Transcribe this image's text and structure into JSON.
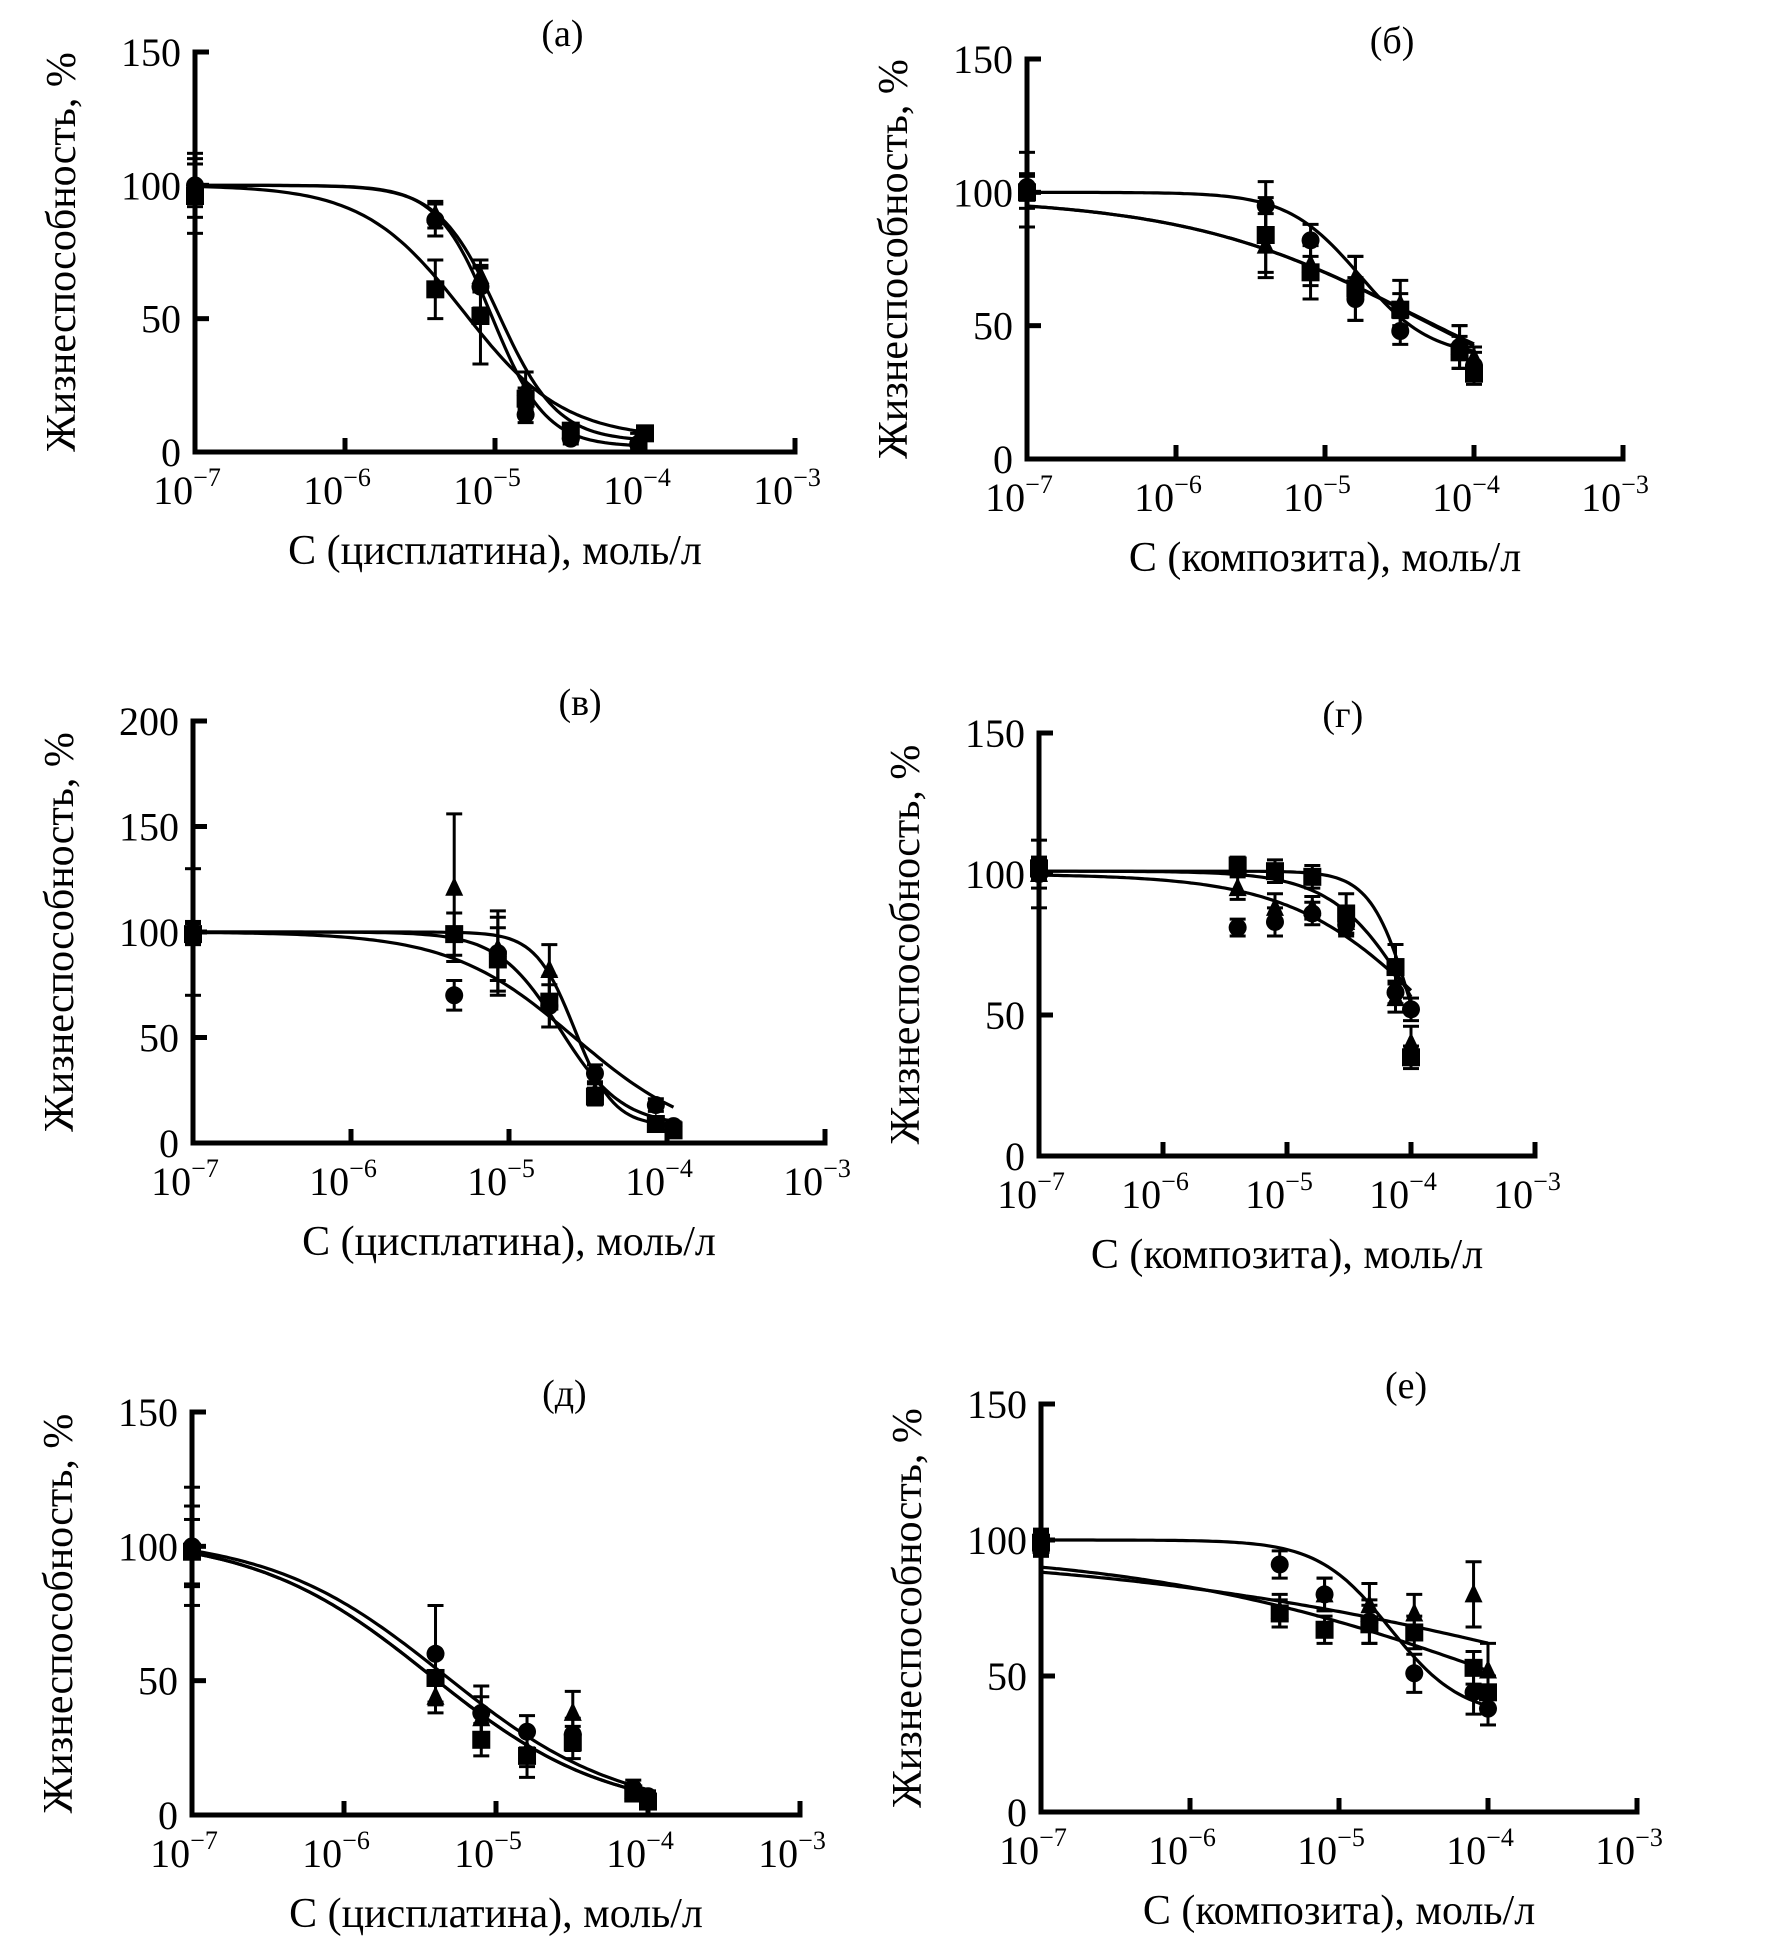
{
  "figure": {
    "panels_count": 6,
    "y_axis_label": "Жизнеспособность, %",
    "x_tick_labels": [
      {
        "base": "10",
        "exp": "−7"
      },
      {
        "base": "10",
        "exp": "−6"
      },
      {
        "base": "10",
        "exp": "−5"
      },
      {
        "base": "10",
        "exp": "−4"
      },
      {
        "base": "10",
        "exp": "−3"
      }
    ]
  },
  "chart_data": [
    {
      "id": "a",
      "type": "scatter",
      "title": "(а)",
      "xlabel": "C (цисплатина), моль/л",
      "ylabel": "Жизнеспособность, %",
      "xscale": "log",
      "xlim": [
        1e-07,
        0.001
      ],
      "ylim": [
        0,
        150
      ],
      "yticks": [
        0,
        50,
        100,
        150
      ],
      "series": [
        {
          "name": "circle",
          "marker": "circle",
          "points": [
            [
              1e-07,
              100,
              8
            ],
            [
              4e-06,
              87,
              6
            ],
            [
              8e-06,
              62,
              8
            ],
            [
              1.6e-05,
              14,
              3
            ],
            [
              3.2e-05,
              5,
              2
            ],
            [
              9e-05,
              3,
              2
            ]
          ],
          "fit": {
            "top": 100,
            "bottom": 2,
            "ic50": 9.5e-06,
            "hill": 2.4
          }
        },
        {
          "name": "triangle",
          "marker": "triangle",
          "points": [
            [
              1e-07,
              100,
              12
            ],
            [
              4e-06,
              89,
              5
            ],
            [
              8e-06,
              66,
              6
            ],
            [
              1.6e-05,
              24,
              6
            ],
            [
              3.2e-05,
              8,
              2
            ],
            [
              9e-05,
              5,
              2
            ]
          ],
          "fit": {
            "top": 100,
            "bottom": 4,
            "ic50": 1.05e-05,
            "hill": 2.2
          }
        },
        {
          "name": "square",
          "marker": "square",
          "points": [
            [
              1e-07,
              96,
              14
            ],
            [
              4e-06,
              61,
              11
            ],
            [
              8e-06,
              51,
              18
            ],
            [
              1.6e-05,
              20,
              4
            ],
            [
              3.2e-05,
              8,
              2
            ],
            [
              0.0001,
              7,
              2
            ]
          ],
          "fit": {
            "top": 100,
            "bottom": 5,
            "ic50": 6.2e-06,
            "hill": 1.3
          }
        }
      ]
    },
    {
      "id": "b",
      "type": "scatter",
      "title": "(б)",
      "xlabel": "C (композита), моль/л",
      "ylabel": "Жизнеспособность, %",
      "xscale": "log",
      "xlim": [
        1e-07,
        0.001
      ],
      "ylim": [
        0,
        150
      ],
      "yticks": [
        0,
        50,
        100,
        150
      ],
      "series": [
        {
          "name": "circle",
          "marker": "circle",
          "points": [
            [
              1e-07,
              102,
              5
            ],
            [
              4e-06,
              95,
              9
            ],
            [
              8e-06,
              82,
              6
            ],
            [
              1.6e-05,
              60,
              8
            ],
            [
              3.2e-05,
              48,
              5
            ],
            [
              8e-05,
              42,
              8
            ],
            [
              0.0001,
              35,
              5
            ]
          ],
          "fit": {
            "top": 100,
            "bottom": 38,
            "ic50": 1.7e-05,
            "hill": 1.8
          }
        },
        {
          "name": "triangle",
          "marker": "triangle",
          "points": [
            [
              1e-07,
              101,
              14
            ],
            [
              4e-06,
              80,
              12
            ],
            [
              8e-06,
              73,
              8
            ],
            [
              1.6e-05,
              68,
              8
            ],
            [
              3.2e-05,
              58,
              9
            ],
            [
              8e-05,
              42,
              8
            ],
            [
              0.0001,
              38,
              4
            ]
          ],
          "fit": {
            "top": 98,
            "bottom": 10,
            "ic50": 4e-05,
            "hill": 0.55
          }
        },
        {
          "name": "square",
          "marker": "square",
          "points": [
            [
              1e-07,
              100,
              6
            ],
            [
              4e-06,
              84,
              14
            ],
            [
              8e-06,
              70,
              10
            ],
            [
              1.6e-05,
              64,
              12
            ],
            [
              3.2e-05,
              56,
              6
            ],
            [
              8e-05,
              40,
              6
            ],
            [
              0.0001,
              32,
              4
            ]
          ],
          "fit": {
            "top": 98,
            "bottom": 8,
            "ic50": 4.2e-05,
            "hill": 0.55
          }
        }
      ]
    },
    {
      "id": "v",
      "type": "scatter",
      "title": "(в)",
      "xlabel": "C (цисплатина), моль/л",
      "ylabel": "Жизнеспособность, %",
      "xscale": "log",
      "xlim": [
        1e-07,
        0.001
      ],
      "ylim": [
        0,
        200
      ],
      "yticks": [
        0,
        50,
        100,
        150,
        200
      ],
      "series": [
        {
          "name": "circle",
          "marker": "circle",
          "points": [
            [
              1e-07,
              100,
              30
            ],
            [
              4.5e-06,
              70,
              7
            ],
            [
              8.5e-06,
              90,
              20
            ],
            [
              1.8e-05,
              65,
              10
            ],
            [
              3.5e-05,
              33,
              4
            ],
            [
              8.5e-05,
              18,
              3
            ],
            [
              0.00011,
              8,
              2
            ]
          ],
          "fit": {
            "top": 100,
            "bottom": 0,
            "ic50": 2.6e-05,
            "hill": 1.1
          }
        },
        {
          "name": "triangle",
          "marker": "triangle",
          "points": [
            [
              1e-07,
              100,
              5
            ],
            [
              4.5e-06,
              121,
              35
            ],
            [
              8.5e-06,
              92,
              15
            ],
            [
              1.8e-05,
              82,
              12
            ],
            [
              3.5e-05,
              24,
              4
            ],
            [
              8.5e-05,
              9,
              2
            ],
            [
              0.00011,
              7,
              2
            ]
          ],
          "fit": {
            "top": 100,
            "bottom": 8,
            "ic50": 2.6e-05,
            "hill": 3.5
          }
        },
        {
          "name": "square",
          "marker": "square",
          "points": [
            [
              1e-07,
              99,
              5
            ],
            [
              4.5e-06,
              99,
              10
            ],
            [
              8.5e-06,
              87,
              15
            ],
            [
              1.8e-05,
              67,
              12
            ],
            [
              3.5e-05,
              22,
              4
            ],
            [
              8.5e-05,
              9,
              2
            ],
            [
              0.00011,
              6,
              2
            ]
          ],
          "fit": {
            "top": 100,
            "bottom": 8,
            "ic50": 2.1e-05,
            "hill": 2.2
          }
        }
      ]
    },
    {
      "id": "g",
      "type": "scatter",
      "title": "(г)",
      "xlabel": "C (композита), моль/л",
      "ylabel": "Жизнеспособность, %",
      "xscale": "log",
      "xlim": [
        1e-07,
        0.001
      ],
      "ylim": [
        0,
        150
      ],
      "yticks": [
        0,
        50,
        100,
        150
      ],
      "series": [
        {
          "name": "circle",
          "marker": "circle",
          "points": [
            [
              1e-07,
              100,
              5
            ],
            [
              4e-06,
              81,
              3
            ],
            [
              8e-06,
              83,
              5
            ],
            [
              1.6e-05,
              86,
              4
            ],
            [
              3e-05,
              82,
              3
            ],
            [
              7.5e-05,
              58,
              4
            ],
            [
              0.0001,
              52,
              4
            ]
          ],
          "fit": {
            "top": 100,
            "bottom": 0,
            "ic50": 0.00016,
            "hill": 0.75
          }
        },
        {
          "name": "triangle",
          "marker": "triangle",
          "points": [
            [
              1e-07,
              100,
              12
            ],
            [
              4e-06,
              95,
              4
            ],
            [
              8e-06,
              88,
              5
            ],
            [
              1.6e-05,
              88,
              4
            ],
            [
              3e-05,
              83,
              5
            ],
            [
              7.5e-05,
              56,
              5
            ],
            [
              0.0001,
              40,
              6
            ]
          ],
          "fit": {
            "top": 101,
            "bottom": 0,
            "ic50": 0.00012,
            "hill": 1.3
          }
        },
        {
          "name": "square",
          "marker": "square",
          "points": [
            [
              1e-07,
              102,
              4
            ],
            [
              4e-06,
              103,
              3
            ],
            [
              8e-06,
              101,
              4
            ],
            [
              1.6e-05,
              99,
              4
            ],
            [
              3e-05,
              86,
              7
            ],
            [
              7.5e-05,
              67,
              8
            ],
            [
              0.0001,
              35,
              4
            ]
          ],
          "fit": {
            "top": 101,
            "bottom": 0,
            "ic50": 0.000105,
            "hill": 2.6
          }
        }
      ]
    },
    {
      "id": "d",
      "type": "scatter",
      "title": "(д)",
      "xlabel": "C (цисплатина), моль/л",
      "ylabel": "Жизнеспособность, %",
      "xscale": "log",
      "xlim": [
        1e-07,
        0.001
      ],
      "ylim": [
        0,
        150
      ],
      "yticks": [
        0,
        50,
        100,
        150
      ],
      "series": [
        {
          "name": "circle",
          "marker": "circle",
          "points": [
            [
              1e-07,
              100,
              22
            ],
            [
              4e-06,
              60,
              18
            ],
            [
              8e-06,
              38,
              10
            ],
            [
              1.6e-05,
              31,
              6
            ],
            [
              3.2e-05,
              30,
              6
            ],
            [
              8e-05,
              10,
              3
            ],
            [
              0.0001,
              7,
              2
            ]
          ],
          "fit": {
            "top": 104,
            "bottom": 0,
            "ic50": 4.6e-06,
            "hill": 0.75
          }
        },
        {
          "name": "triangle",
          "marker": "triangle",
          "points": [
            [
              1e-07,
              100,
              15
            ],
            [
              4e-06,
              44,
              6
            ],
            [
              8e-06,
              36,
              8
            ],
            [
              1.6e-05,
              24,
              6
            ],
            [
              3.2e-05,
              38,
              8
            ],
            [
              8e-05,
              9,
              2
            ],
            [
              0.0001,
              6,
              2
            ]
          ],
          "fit": {
            "top": 104,
            "bottom": 0,
            "ic50": 3.7e-06,
            "hill": 0.75
          }
        },
        {
          "name": "square",
          "marker": "square",
          "points": [
            [
              1e-07,
              98,
              12
            ],
            [
              4e-06,
              51,
              10
            ],
            [
              8e-06,
              28,
              6
            ],
            [
              1.6e-05,
              22,
              8
            ],
            [
              3.2e-05,
              27,
              6
            ],
            [
              8e-05,
              8,
              2
            ],
            [
              0.0001,
              5,
              2
            ]
          ],
          "fit": {
            "top": 104,
            "bottom": 0,
            "ic50": 3.7e-06,
            "hill": 0.75
          }
        }
      ]
    },
    {
      "id": "e",
      "type": "scatter",
      "title": "(е)",
      "xlabel": "C (композита), моль/л",
      "ylabel": "Жизнеспособность, %",
      "xscale": "log",
      "xlim": [
        1e-07,
        0.001
      ],
      "ylim": [
        0,
        150
      ],
      "yticks": [
        0,
        50,
        100,
        150
      ],
      "series": [
        {
          "name": "circle",
          "marker": "circle",
          "points": [
            [
              1e-07,
              100,
              4
            ],
            [
              4e-06,
              91,
              5
            ],
            [
              8e-06,
              80,
              6
            ],
            [
              1.6e-05,
              70,
              8
            ],
            [
              3.2e-05,
              51,
              7
            ],
            [
              8e-05,
              44,
              8
            ],
            [
              0.0001,
              38,
              6
            ]
          ],
          "fit": {
            "top": 100,
            "bottom": 35,
            "ic50": 2.2e-05,
            "hill": 1.8
          }
        },
        {
          "name": "triangle",
          "marker": "triangle",
          "points": [
            [
              1e-07,
              98,
              4
            ],
            [
              4e-06,
              74,
              6
            ],
            [
              8e-06,
              80,
              6
            ],
            [
              1.6e-05,
              76,
              8
            ],
            [
              3.2e-05,
              73,
              7
            ],
            [
              8e-05,
              80,
              12
            ],
            [
              0.0001,
              52,
              10
            ]
          ],
          "fit": {
            "top": 97,
            "bottom": 0,
            "ic50": 0.001,
            "hill": 0.25
          }
        },
        {
          "name": "square",
          "marker": "square",
          "points": [
            [
              1e-07,
              99,
              4
            ],
            [
              4e-06,
              73,
              5
            ],
            [
              8e-06,
              67,
              5
            ],
            [
              1.6e-05,
              69,
              7
            ],
            [
              3.2e-05,
              66,
              6
            ],
            [
              8e-05,
              53,
              6
            ],
            [
              0.0001,
              44,
              6
            ]
          ],
          "fit": {
            "top": 97,
            "bottom": 0,
            "ic50": 0.00015,
            "hill": 0.35
          }
        }
      ]
    }
  ]
}
